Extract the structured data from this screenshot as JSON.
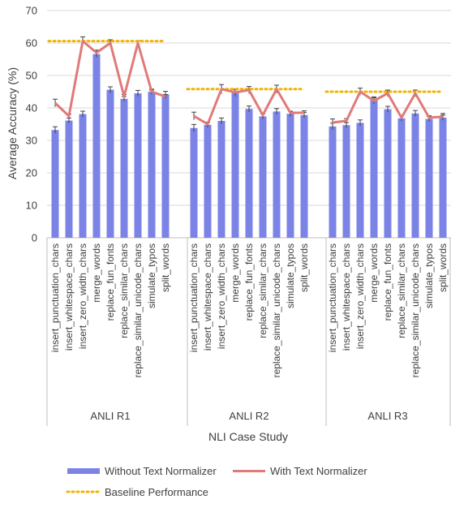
{
  "chart_data": {
    "type": "bar",
    "ylabel": "Average Accuracy (%)",
    "xlabel": "NLI Case Study",
    "ylim": [
      0,
      70
    ],
    "yticks": [
      0,
      10,
      20,
      30,
      40,
      50,
      60,
      70
    ],
    "grid": true,
    "legend_placement": "bottom",
    "colors": {
      "bar": "#7b83e6",
      "line": "#e07a78",
      "baseline": "#f2b400",
      "error": "#404040",
      "grid": "#d9d9d9",
      "axis": "#bfbfbf"
    },
    "categories": [
      "insert_punctuation_chars",
      "insert_whitespace_chars",
      "insert_zero_width_chars",
      "merge_words",
      "replace_fun_fonts",
      "replace_similar_chars",
      "replace_similar_unicode_chars",
      "simulate_typos",
      "split_words"
    ],
    "legend": {
      "without": "Without Text Normalizer",
      "with": "With Text Normalizer",
      "baseline": "Baseline Performance"
    },
    "groups": [
      {
        "name": "ANLI R1",
        "without": [
          33.2,
          36.1,
          38.1,
          56.6,
          45.6,
          42.8,
          44.5,
          45.0,
          44.2
        ],
        "with": [
          41.5,
          37.5,
          60.6,
          57.0,
          60.0,
          43.5,
          60.0,
          45.0,
          43.5
        ],
        "baseline": 60.6,
        "err_without": [
          1.0,
          0.8,
          0.9,
          1.0,
          0.9,
          0.7,
          0.9,
          0.8,
          0.9
        ],
        "err_with": [
          1.2,
          0.6,
          1.3,
          0.8,
          1.0,
          0.6,
          0.7,
          0.5,
          0.6
        ]
      },
      {
        "name": "ANLI R2",
        "without": [
          33.8,
          34.8,
          36.0,
          44.6,
          39.7,
          37.4,
          38.9,
          38.2,
          37.8
        ],
        "with": [
          37.5,
          35.0,
          45.8,
          44.8,
          45.5,
          37.8,
          45.8,
          38.5,
          38.5
        ],
        "baseline": 45.8,
        "err_without": [
          1.1,
          0.8,
          0.9,
          1.0,
          0.9,
          0.8,
          0.9,
          0.8,
          0.8
        ],
        "err_with": [
          1.2,
          0.6,
          1.4,
          1.0,
          1.1,
          0.6,
          1.2,
          0.5,
          0.6
        ]
      },
      {
        "name": "ANLI R3",
        "without": [
          34.3,
          34.7,
          35.4,
          42.5,
          39.6,
          36.8,
          38.3,
          36.6,
          37.0
        ],
        "with": [
          35.5,
          36.0,
          45.0,
          42.2,
          44.5,
          37.0,
          44.5,
          37.0,
          37.3
        ],
        "baseline": 45.0,
        "err_without": [
          1.0,
          0.8,
          0.9,
          0.9,
          0.9,
          0.8,
          0.9,
          0.8,
          0.8
        ],
        "err_with": [
          1.1,
          0.7,
          1.1,
          0.9,
          1.0,
          0.6,
          1.0,
          0.6,
          1.0
        ]
      }
    ]
  }
}
